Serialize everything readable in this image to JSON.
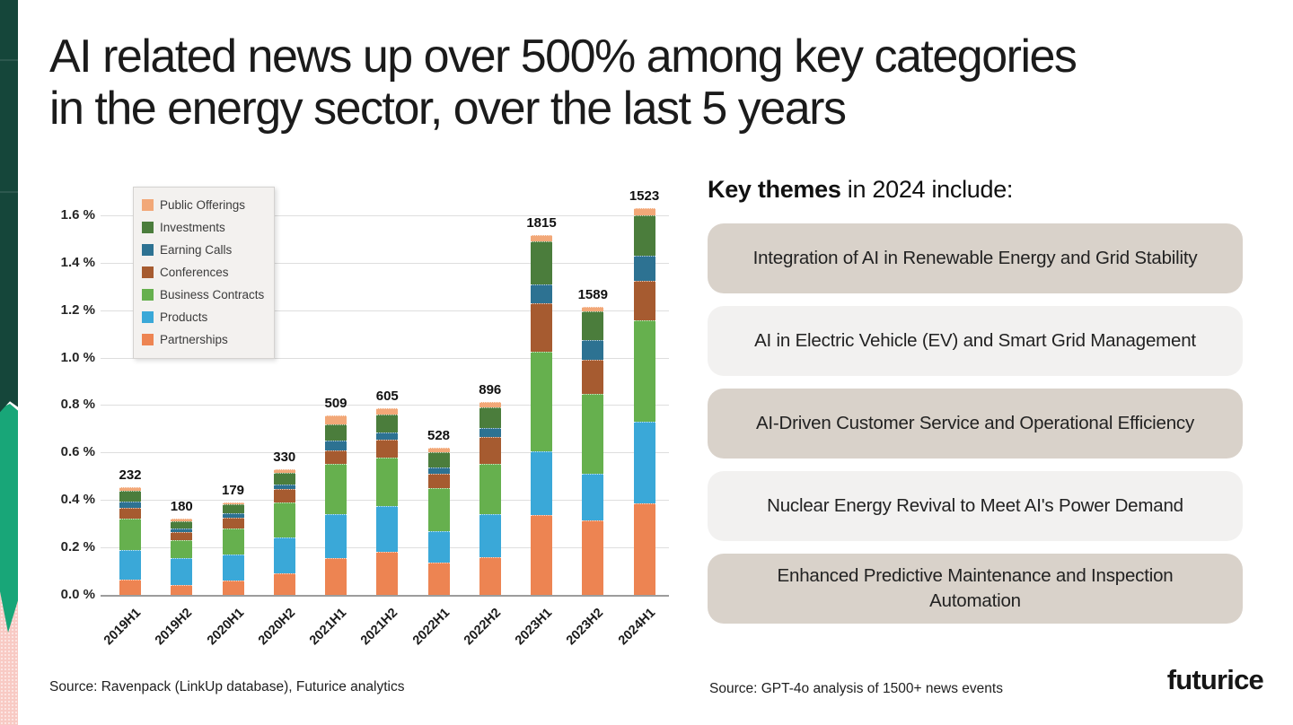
{
  "slide": {
    "title_line1": "AI related news up over 500% among key categories",
    "title_line2": "in the energy sector, over the last 5 years",
    "source_left": "Source: Ravenpack (LinkUp database), Futurice analytics",
    "source_right": "Source: GPT-4o analysis of 1500+ news events",
    "logo_text": "futurice"
  },
  "decor": {
    "strip_dark_green": "#15463a",
    "strip_emerald": "#18a678",
    "strip_pink": "#f8cac4"
  },
  "key_themes": {
    "heading_bold": "Key themes",
    "heading_rest": " in 2024 include:",
    "box_colors": {
      "dark": "#d9d2ca",
      "light": "#f2f1f0"
    },
    "items": [
      {
        "label": "Integration of AI in Renewable Energy and Grid Stability",
        "tone": "dark"
      },
      {
        "label": "AI in Electric Vehicle (EV) and Smart Grid Management",
        "tone": "light"
      },
      {
        "label": "AI-Driven Customer Service and Operational Efficiency",
        "tone": "dark"
      },
      {
        "label": "Nuclear Energy Revival to Meet AI's Power Demand",
        "tone": "light"
      },
      {
        "label": "Enhanced Predictive Maintenance and Inspection Automation",
        "tone": "dark"
      }
    ]
  },
  "chart_data": {
    "type": "bar",
    "stacked": true,
    "title": "",
    "xlabel": "",
    "ylabel": "",
    "unit": "% share of news",
    "grid": true,
    "legend_position": "upper-left-inside",
    "ylim": [
      0,
      1.73
    ],
    "y_ticks": [
      {
        "value": 0.0,
        "label": "0.0 %"
      },
      {
        "value": 0.2,
        "label": "0.2 %"
      },
      {
        "value": 0.4,
        "label": "0.4 %"
      },
      {
        "value": 0.6,
        "label": "0.6 %"
      },
      {
        "value": 0.8,
        "label": "0.8 %"
      },
      {
        "value": 1.0,
        "label": "1.0 %"
      },
      {
        "value": 1.2,
        "label": "1.2 %"
      },
      {
        "value": 1.4,
        "label": "1.4 %"
      },
      {
        "value": 1.6,
        "label": "1.6 %"
      }
    ],
    "categories": [
      "2019H1",
      "2019H2",
      "2020H1",
      "2020H2",
      "2021H1",
      "2021H2",
      "2022H1",
      "2022H2",
      "2023H1",
      "2023H2",
      "2024H1"
    ],
    "totals": [
      232,
      180,
      179,
      330,
      509,
      605,
      528,
      896,
      1815,
      1589,
      1523
    ],
    "series_note": "values are estimated % per stacked segment, listed bottom-to-top of stack",
    "series": [
      {
        "name": "Partnerships",
        "color": "#ed8452",
        "values": [
          0.065,
          0.04,
          0.06,
          0.09,
          0.155,
          0.18,
          0.135,
          0.16,
          0.335,
          0.315,
          0.385
        ]
      },
      {
        "name": "Products",
        "color": "#3aa8d8",
        "values": [
          0.125,
          0.115,
          0.11,
          0.15,
          0.185,
          0.195,
          0.135,
          0.18,
          0.27,
          0.195,
          0.345
        ]
      },
      {
        "name": "Business Contracts",
        "color": "#66b04e",
        "values": [
          0.13,
          0.075,
          0.11,
          0.15,
          0.21,
          0.205,
          0.18,
          0.21,
          0.42,
          0.335,
          0.425
        ]
      },
      {
        "name": "Conferences",
        "color": "#a65b30",
        "values": [
          0.045,
          0.035,
          0.045,
          0.055,
          0.06,
          0.075,
          0.06,
          0.115,
          0.205,
          0.145,
          0.17
        ]
      },
      {
        "name": "Earning Calls",
        "color": "#2d7292",
        "values": [
          0.03,
          0.015,
          0.02,
          0.02,
          0.04,
          0.03,
          0.025,
          0.04,
          0.08,
          0.085,
          0.105
        ]
      },
      {
        "name": "Investments",
        "color": "#4b7d3c",
        "values": [
          0.045,
          0.03,
          0.035,
          0.05,
          0.07,
          0.075,
          0.065,
          0.085,
          0.18,
          0.12,
          0.17
        ]
      },
      {
        "name": "Public Offerings",
        "color": "#f2a878",
        "values": [
          0.012,
          0.012,
          0.01,
          0.015,
          0.035,
          0.025,
          0.02,
          0.022,
          0.025,
          0.02,
          0.03
        ]
      }
    ],
    "legend_top_to_bottom": [
      "Public Offerings",
      "Investments",
      "Earning Calls",
      "Conferences",
      "Business Contracts",
      "Products",
      "Partnerships"
    ]
  }
}
